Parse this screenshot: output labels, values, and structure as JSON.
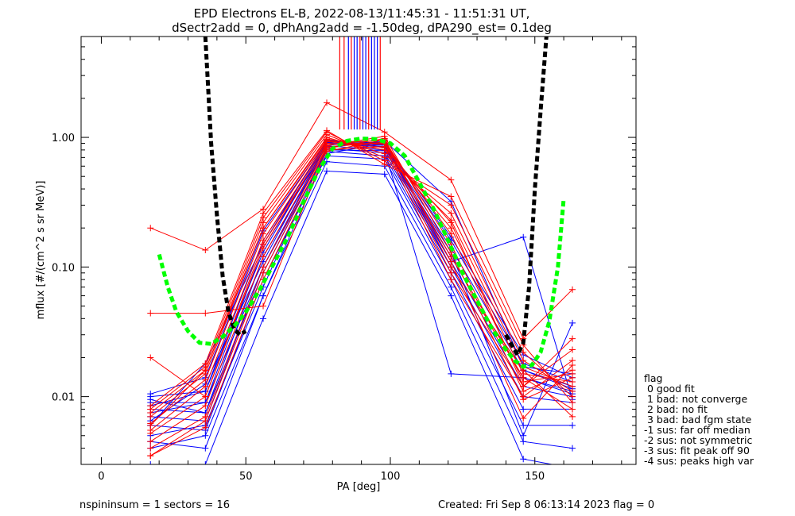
{
  "chart_data": {
    "type": "line",
    "title": "EPD Electrons EL-B, 2022-08-13/11:45:31 - 11:51:31 UT,",
    "subtitle": "dSectr2add = 0, dPhAng2add = -1.50deg, dPA290_est=   0.1deg",
    "xlabel": "PA [deg]",
    "ylabel": "mflux [#/(cm^2 s sr MeV)]",
    "xlim": [
      -7,
      185
    ],
    "ylim": [
      0.003,
      6.0
    ],
    "y_scale": "log",
    "grid": false,
    "x_ticks": [
      {
        "value": 0,
        "label": "0"
      },
      {
        "value": 50,
        "label": "50"
      },
      {
        "value": 100,
        "label": "100"
      },
      {
        "value": 150,
        "label": "150"
      }
    ],
    "y_ticks": [
      {
        "value": 0.01,
        "label": "0.01"
      },
      {
        "value": 0.1,
        "label": "0.10"
      },
      {
        "value": 1.0,
        "label": "1.00"
      }
    ],
    "pa_bins": [
      17,
      36,
      56,
      78,
      98,
      121,
      146,
      163
    ],
    "colors": {
      "red": "#ff0000",
      "blue": "#0000ff",
      "black": "#000000",
      "green": "#00ff00"
    },
    "red_series": [
      [
        0.0035,
        0.0065,
        0.09,
        0.82,
        0.98,
        0.11,
        0.0068,
        0.0175
      ],
      [
        0.0045,
        0.0085,
        0.12,
        0.86,
        1.02,
        0.13,
        0.0095,
        0.014
      ],
      [
        0.0052,
        0.01,
        0.14,
        0.9,
        0.95,
        0.15,
        0.011,
        0.016
      ],
      [
        0.0055,
        0.012,
        0.16,
        0.93,
        0.88,
        0.18,
        0.013,
        0.015
      ],
      [
        0.0062,
        0.0135,
        0.18,
        0.95,
        0.8,
        0.2,
        0.015,
        0.013
      ],
      [
        0.007,
        0.015,
        0.2,
        1.0,
        0.75,
        0.23,
        0.017,
        0.012
      ],
      [
        0.0075,
        0.016,
        0.22,
        1.05,
        0.7,
        0.26,
        0.019,
        0.011
      ],
      [
        0.008,
        0.017,
        0.24,
        1.1,
        0.66,
        0.3,
        0.022,
        0.01
      ],
      [
        0.0085,
        0.018,
        0.26,
        1.13,
        0.62,
        0.35,
        0.025,
        0.009
      ],
      [
        0.02,
        0.01,
        0.15,
        0.88,
        0.9,
        0.09,
        0.012,
        0.023
      ],
      [
        0.044,
        0.044,
        0.05,
        0.8,
        0.85,
        0.08,
        0.01,
        0.019
      ],
      [
        0.2,
        0.135,
        0.28,
        1.85,
        1.1,
        0.47,
        0.028,
        0.067
      ],
      [
        0.004,
        0.007,
        0.1,
        0.84,
        0.92,
        0.12,
        0.014,
        0.008
      ],
      [
        0.0035,
        0.0058,
        0.08,
        0.78,
        0.96,
        0.1,
        0.016,
        0.007
      ],
      [
        0.006,
        0.016,
        0.2,
        0.97,
        0.83,
        0.22,
        0.012,
        0.028
      ]
    ],
    "blue_series": [
      [
        0.003,
        0.003,
        0.04,
        0.55,
        0.52,
        0.06,
        0.0033,
        0.0028
      ],
      [
        0.0045,
        0.004,
        0.06,
        0.65,
        0.6,
        0.07,
        0.0045,
        0.004
      ],
      [
        0.006,
        0.0055,
        0.08,
        0.72,
        0.68,
        0.08,
        0.006,
        0.006
      ],
      [
        0.007,
        0.0065,
        0.1,
        0.78,
        0.72,
        0.09,
        0.008,
        0.008
      ],
      [
        0.008,
        0.0075,
        0.12,
        0.82,
        0.76,
        0.1,
        0.01,
        0.009
      ],
      [
        0.009,
        0.009,
        0.14,
        0.86,
        0.8,
        0.11,
        0.012,
        0.01
      ],
      [
        0.01,
        0.011,
        0.16,
        0.9,
        0.84,
        0.12,
        0.014,
        0.011
      ],
      [
        0.0105,
        0.014,
        0.19,
        0.94,
        0.88,
        0.14,
        0.016,
        0.012
      ],
      [
        0.006,
        0.018,
        0.15,
        0.95,
        0.9,
        0.16,
        0.018,
        0.013
      ],
      [
        0.0075,
        0.009,
        0.1,
        0.88,
        0.92,
        0.17,
        0.021,
        0.014
      ],
      [
        0.005,
        0.006,
        0.07,
        0.84,
        0.94,
        0.32,
        0.017,
        0.015
      ],
      [
        0.0085,
        0.011,
        0.13,
        0.92,
        0.85,
        0.13,
        0.005,
        0.037
      ],
      [
        0.0095,
        0.0075,
        0.09,
        0.8,
        0.79,
        0.015,
        0.014,
        0.0105
      ],
      [
        0.0065,
        0.0125,
        0.11,
        0.91,
        0.87,
        0.1,
        0.016,
        0.0115
      ],
      [
        0.004,
        0.005,
        0.06,
        0.75,
        0.9,
        0.11,
        0.17,
        0.0095
      ]
    ],
    "vertical_segments": [
      {
        "x": 82.5,
        "color": "red"
      },
      {
        "x": 84,
        "color": "red"
      },
      {
        "x": 85.5,
        "color": "blue"
      },
      {
        "x": 86.5,
        "color": "red"
      },
      {
        "x": 87.5,
        "color": "blue"
      },
      {
        "x": 88.5,
        "color": "blue"
      },
      {
        "x": 89.5,
        "color": "red"
      },
      {
        "x": 90.5,
        "color": "blue"
      },
      {
        "x": 91.5,
        "color": "blue"
      },
      {
        "x": 92.5,
        "color": "red"
      },
      {
        "x": 93.5,
        "color": "blue"
      },
      {
        "x": 94.5,
        "color": "blue"
      },
      {
        "x": 95.5,
        "color": "blue"
      },
      {
        "x": 96.5,
        "color": "red"
      }
    ],
    "vertical_segment_ylow": 1.15,
    "black_fit": {
      "x": [
        36,
        38,
        40,
        42,
        44,
        46,
        48,
        50,
        140,
        142,
        144,
        146,
        148,
        150,
        152,
        154
      ],
      "y": [
        6.0,
        0.9,
        0.25,
        0.085,
        0.045,
        0.033,
        0.03,
        0.032,
        0.03,
        0.025,
        0.021,
        0.026,
        0.07,
        0.4,
        1.6,
        6.0
      ]
    },
    "green_fit": {
      "x": [
        20,
        23,
        26,
        30,
        34,
        38,
        42,
        46,
        50,
        55,
        60,
        65,
        70,
        75,
        80,
        85,
        90,
        95,
        100,
        105,
        110,
        115,
        120,
        125,
        130,
        135,
        140,
        143,
        146,
        149,
        152,
        155,
        158,
        160
      ],
      "y": [
        0.125,
        0.07,
        0.045,
        0.032,
        0.026,
        0.0255,
        0.029,
        0.035,
        0.045,
        0.068,
        0.11,
        0.18,
        0.32,
        0.55,
        0.82,
        0.94,
        0.98,
        0.97,
        0.9,
        0.72,
        0.45,
        0.28,
        0.16,
        0.09,
        0.055,
        0.034,
        0.023,
        0.019,
        0.017,
        0.0175,
        0.022,
        0.038,
        0.1,
        0.34
      ]
    },
    "legend": {
      "title": "flag",
      "position": "right",
      "entries": [
        " 0 good fit",
        " 1 bad: not converge",
        " 2 bad: no fit",
        " 3 bad: bad fgm state",
        "-1 sus: far off median",
        "-2 sus: not symmetric",
        "-3 sus: fit peak off 90",
        "-4 sus: peaks high var"
      ]
    },
    "footer_left": "nspininsum =  1  sectors = 16",
    "footer_right": "Created: Fri Sep  8 06:13:14 2023   flag = 0"
  }
}
